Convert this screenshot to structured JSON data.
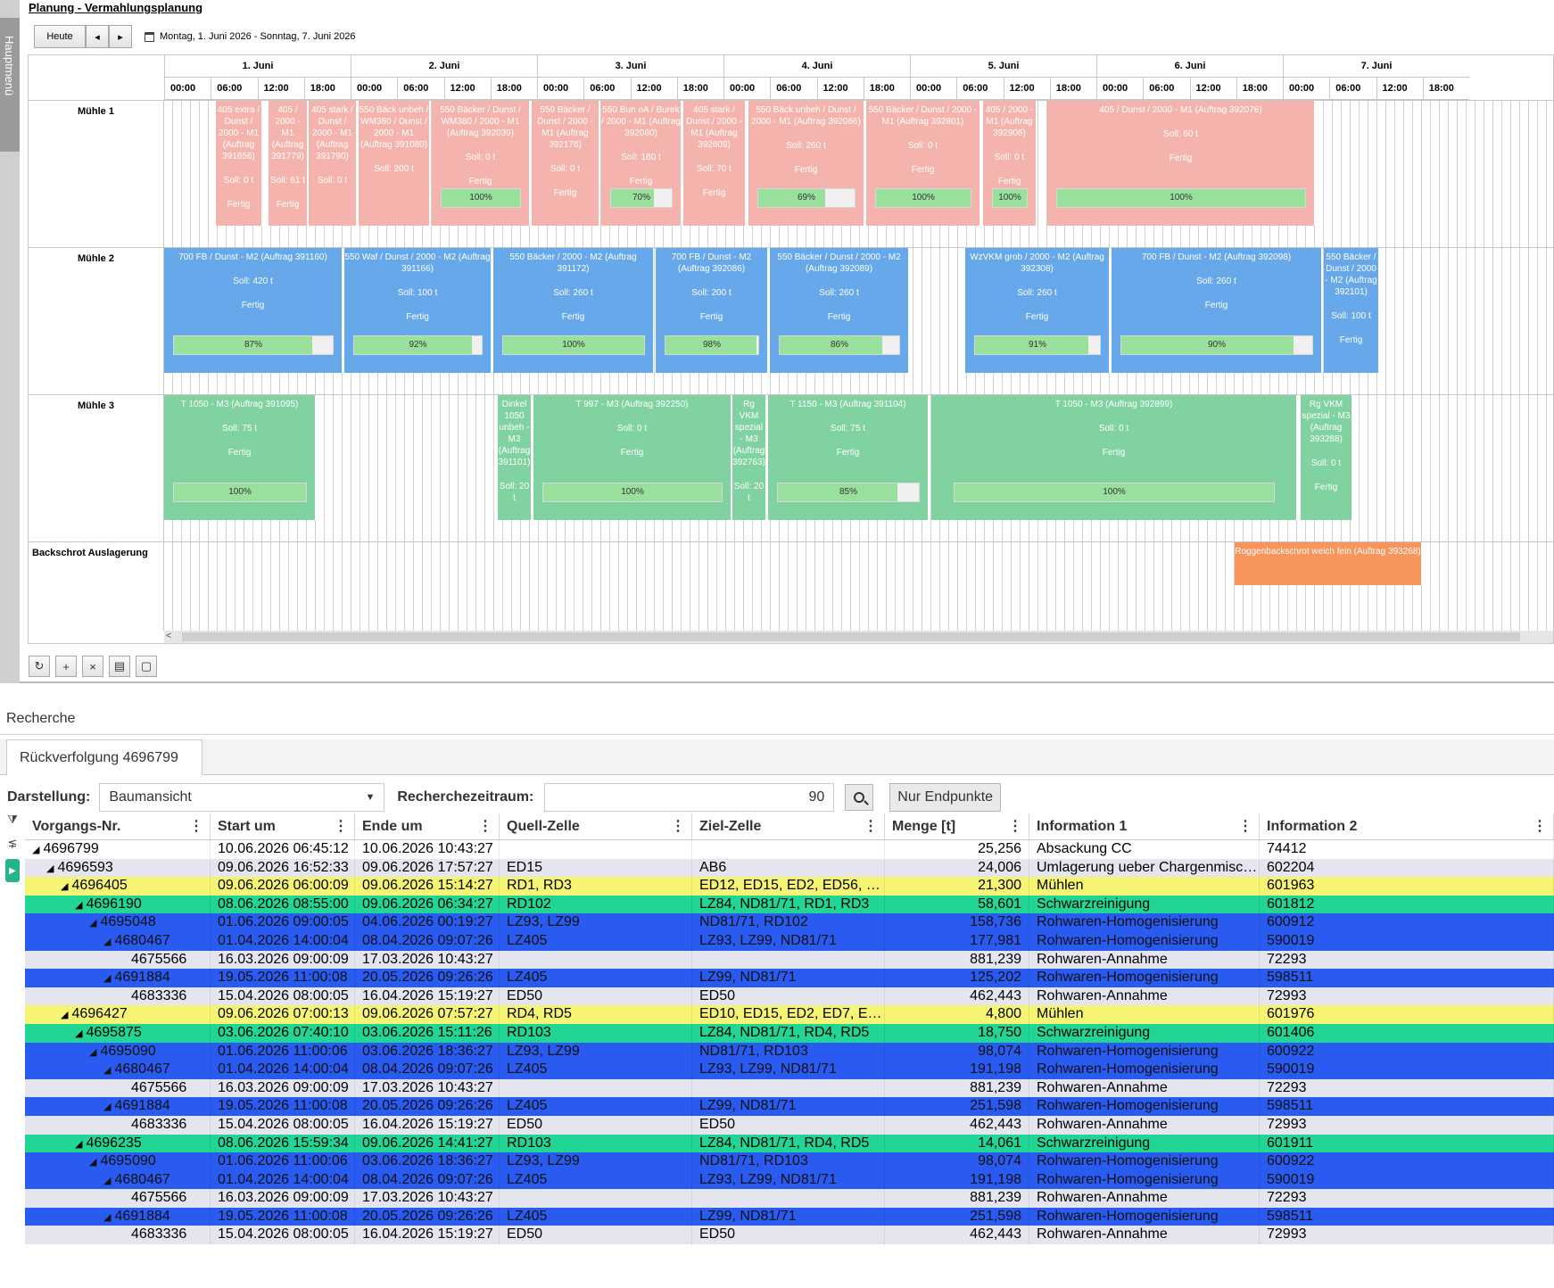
{
  "sidebar": {
    "label": "Hauptmenü"
  },
  "plan": {
    "title": "Planung - Vermahlungsplanung",
    "toolbar": {
      "today": "Heute",
      "prev": "◂",
      "next": "▸",
      "range": "Montag, 1. Juni 2026 - Sonntag, 7. Juni 2026"
    },
    "days": [
      "1. Juni",
      "2. Juni",
      "3. Juni",
      "4. Juni",
      "5. Juni",
      "6. Juni",
      "7. Juni"
    ],
    "hours": [
      "00:00",
      "06:00",
      "12:00",
      "18:00"
    ],
    "rows": [
      "Mühle 1",
      "Mühle 2",
      "Mühle 3",
      "Backschrot Auslagerung"
    ],
    "tasks_m1": [
      {
        "title": "405 extra / Dunst / 2000 - M1 (Auftrag 391656)",
        "soll": "Soll: 0 t",
        "state": "Fertig"
      },
      {
        "title": "405 / 2000 - M1 (Auftrag 391779)",
        "soll": "Soll: 61 t",
        "state": "Fertig"
      },
      {
        "title": "405 stark / Dunst / 2000 - M1 (Auftrag 391790)",
        "soll": "Soll: 0 t",
        "state": ""
      },
      {
        "title": "550 Bäck unbeh / WM380 / Dunst / 2000 - M1 (Auftrag 391080)",
        "soll": "Soll: 200 t",
        "state": ""
      },
      {
        "title": "550 Bäcker / Dunst / WM380 / 2000 - M1 (Auftrag 392039)",
        "soll": "Soll: 0 t",
        "state": "Fertig",
        "pct": "100%"
      },
      {
        "title": "550 Bäcker / Dunst / 2000 - M1 (Auftrag 392176)",
        "soll": "Soll: 0 t",
        "state": "Fertig"
      },
      {
        "title": "550 Bun oA / Burek / 2000 - M1 (Auftrag 392060)",
        "soll": "Soll: 160 t",
        "state": "Fertig",
        "pct": "70%"
      },
      {
        "title": "405 stark / Dunst / 2000 - M1 (Auftrag 392609)",
        "soll": "Soll: 70 t",
        "state": "Fertig"
      },
      {
        "title": "550 Bäck unbeh / Dunst / 2000 - M1 (Auftrag 392066)",
        "soll": "Soll: 260 t",
        "state": "Fertig",
        "pct": "69%"
      },
      {
        "title": "550 Bäcker / Dunst / 2000 - M1 (Auftrag 392801)",
        "soll": "Soll: 0 t",
        "state": "Fertig",
        "pct": "100%"
      },
      {
        "title": "405 / 2000 - M1 (Auftrag 392906)",
        "soll": "Soll: 0 t",
        "state": "Fertig",
        "pct": "100%"
      },
      {
        "title": "405 / Dunst / 2000 - M1 (Auftrag 392076)",
        "soll": "Soll: 60 t",
        "state": "Fertig",
        "pct": "100%"
      }
    ],
    "tasks_m2": [
      {
        "title": "700 FB / Dunst - M2 (Auftrag 391160)",
        "soll": "Soll: 420 t",
        "state": "Fertig",
        "pct": "87%"
      },
      {
        "title": "550 Waf / Dunst / 2000 - M2 (Auftrag 391166)",
        "soll": "Soll: 100 t",
        "state": "Fertig",
        "pct": "92%"
      },
      {
        "title": "550 Bäcker / 2000 - M2 (Auftrag 391172)",
        "soll": "Soll: 260 t",
        "state": "Fertig",
        "pct": "100%"
      },
      {
        "title": "700 FB / Dunst - M2 (Auftrag 392086)",
        "soll": "Soll: 200 t",
        "state": "Fertig",
        "pct": "98%"
      },
      {
        "title": "550 Bäcker / Dunst / 2000 - M2 (Auftrag 392089)",
        "soll": "Soll: 260 t",
        "state": "Fertig",
        "pct": "86%"
      },
      {
        "title": "WzVKM grob / 2000 - M2 (Auftrag 392308)",
        "soll": "Soll: 260 t",
        "state": "Fertig",
        "pct": "91%"
      },
      {
        "title": "700 FB / Dunst - M2 (Auftrag 392098)",
        "soll": "Soll: 260 t",
        "state": "Fertig",
        "pct": "90%"
      },
      {
        "title": "550 Bäcker / Dunst / 2000 - M2 (Auftrag 392101)",
        "soll": "Soll: 100 t",
        "state": "Fertig"
      }
    ],
    "tasks_m3": [
      {
        "title": "T 1050 - M3 (Auftrag 391095)",
        "soll": "Soll: 75 t",
        "state": "Fertig",
        "pct": "100%"
      },
      {
        "title": "Dinkel 1050 unbeh - M3 (Auftrag 391101)",
        "soll": "Soll: 20 t",
        "state": ""
      },
      {
        "title": "T 997 - M3 (Auftrag 392250)",
        "soll": "Soll: 0 t",
        "state": "Fertig",
        "pct": "100%"
      },
      {
        "title": "Rg VKM spezial - M3 (Auftrag 392763)",
        "soll": "Soll: 20 t",
        "state": ""
      },
      {
        "title": "T 1150 - M3 (Auftrag 391104)",
        "soll": "Soll: 75 t",
        "state": "Fertig",
        "pct": "85%"
      },
      {
        "title": "T 1050 - M3 (Auftrag 392899)",
        "soll": "Soll: 0 t",
        "state": "Fertig",
        "pct": "100%"
      },
      {
        "title": "Rg VKM spezial - M3 (Auftrag 393288)",
        "soll": "Soll: 0 t",
        "state": "Fertig"
      }
    ],
    "tasks_bs": [
      {
        "title": "Roggenbackschrot weich fein (Auftrag 393268)"
      }
    ],
    "progress_levels": {
      "m1": [
        1.0,
        0.7,
        0.69,
        1.0,
        1.0,
        1.0
      ],
      "m2": [
        0.87,
        0.92,
        1.0,
        0.98,
        0.86,
        0.91,
        0.9
      ],
      "m3": [
        1.0,
        1.0,
        0.85,
        1.0
      ]
    },
    "colors": {
      "m1": "#f4b4ad",
      "m2": "#66a8ea",
      "m3": "#80d3a0",
      "bs": "#f7955d"
    }
  },
  "research": {
    "title": "Recherche",
    "tab": "Rückverfolgung 4696799",
    "darstellung_label": "Darstellung:",
    "darstellung_value": "Baumansicht",
    "zeitraum_label": "Recherchezeitraum:",
    "zeitraum_value": "90",
    "endpunkte_btn": "Nur Endpunkte",
    "columns": [
      "Vorgangs-Nr.",
      "Start um",
      "Ende um",
      "Quell-Zelle",
      "Ziel-Zelle",
      "Menge [t]",
      "Information 1",
      "Information 2"
    ],
    "rows": [
      {
        "lvl": 0,
        "arrow": "◢",
        "id": "4696799",
        "start": "10.06.2026 06:45:12",
        "end": "10.06.2026 10:43:27",
        "src": "",
        "dst": "",
        "menge": "25,256",
        "i1": "Absackung CC",
        "i2": "74412",
        "color": "white"
      },
      {
        "lvl": 1,
        "arrow": "◢",
        "id": "4696593",
        "start": "09.06.2026 16:52:33",
        "end": "09.06.2026 17:57:27",
        "src": "ED15",
        "dst": "AB6",
        "menge": "24,006",
        "i1": "Umlagerung ueber Chargenmisc…",
        "i2": "602204",
        "color": "lg"
      },
      {
        "lvl": 2,
        "arrow": "◢",
        "id": "4696405",
        "start": "09.06.2026 06:00:09",
        "end": "09.06.2026 15:14:27",
        "src": "RD1, RD3",
        "dst": "ED12, ED15, ED2, ED56, …",
        "menge": "21,300",
        "i1": "Mühlen",
        "i2": "601963",
        "color": "yellow"
      },
      {
        "lvl": 3,
        "arrow": "◢",
        "id": "4696190",
        "start": "08.06.2026 08:55:00",
        "end": "09.06.2026 06:34:27",
        "src": "RD102",
        "dst": "LZ84, ND81/71, RD1, RD3",
        "menge": "58,601",
        "i1": "Schwarzreinigung",
        "i2": "601812",
        "color": "teal"
      },
      {
        "lvl": 4,
        "arrow": "◢",
        "id": "4695048",
        "start": "01.06.2026 09:00:05",
        "end": "04.06.2026 00:19:27",
        "src": "LZ93, LZ99",
        "dst": "ND81/71, RD102",
        "menge": "158,736",
        "i1": "Rohwaren-Homogenisierung",
        "i2": "600912",
        "color": "blue"
      },
      {
        "lvl": 5,
        "arrow": "◢",
        "id": "4680467",
        "start": "01.04.2026 14:00:04",
        "end": "08.04.2026 09:07:26",
        "src": "LZ405",
        "dst": "LZ93, LZ99, ND81/71",
        "menge": "177,981",
        "i1": "Rohwaren-Homogenisierung",
        "i2": "590019",
        "color": "blue"
      },
      {
        "lvl": 6,
        "arrow": "",
        "id": "4675566",
        "start": "16.03.2026 09:00:09",
        "end": "17.03.2026 10:43:27",
        "src": "",
        "dst": "",
        "menge": "881,239",
        "i1": "Rohwaren-Annahme",
        "i2": "72293",
        "color": "lg"
      },
      {
        "lvl": 5,
        "arrow": "◢",
        "id": "4691884",
        "start": "19.05.2026 11:00:08",
        "end": "20.05.2026 09:26:26",
        "src": "LZ405",
        "dst": "LZ99, ND81/71",
        "menge": "125,202",
        "i1": "Rohwaren-Homogenisierung",
        "i2": "598511",
        "color": "blue"
      },
      {
        "lvl": 6,
        "arrow": "",
        "id": "4683336",
        "start": "15.04.2026 08:00:05",
        "end": "16.04.2026 15:19:27",
        "src": "ED50",
        "dst": "ED50",
        "menge": "462,443",
        "i1": "Rohwaren-Annahme",
        "i2": "72993",
        "color": "lg"
      },
      {
        "lvl": 2,
        "arrow": "◢",
        "id": "4696427",
        "start": "09.06.2026 07:00:13",
        "end": "09.06.2026 07:57:27",
        "src": "RD4, RD5",
        "dst": "ED10, ED15, ED2, ED7, E…",
        "menge": "4,800",
        "i1": "Mühlen",
        "i2": "601976",
        "color": "yellow"
      },
      {
        "lvl": 3,
        "arrow": "◢",
        "id": "4695875",
        "start": "03.06.2026 07:40:10",
        "end": "03.06.2026 15:11:26",
        "src": "RD103",
        "dst": "LZ84, ND81/71, RD4, RD5",
        "menge": "18,750",
        "i1": "Schwarzreinigung",
        "i2": "601406",
        "color": "teal"
      },
      {
        "lvl": 4,
        "arrow": "◢",
        "id": "4695090",
        "start": "01.06.2026 11:00:06",
        "end": "03.06.2026 18:36:27",
        "src": "LZ93, LZ99",
        "dst": "ND81/71, RD103",
        "menge": "98,074",
        "i1": "Rohwaren-Homogenisierung",
        "i2": "600922",
        "color": "blue"
      },
      {
        "lvl": 5,
        "arrow": "◢",
        "id": "4680467",
        "start": "01.04.2026 14:00:04",
        "end": "08.04.2026 09:07:26",
        "src": "LZ405",
        "dst": "LZ93, LZ99, ND81/71",
        "menge": "191,198",
        "i1": "Rohwaren-Homogenisierung",
        "i2": "590019",
        "color": "blue"
      },
      {
        "lvl": 6,
        "arrow": "",
        "id": "4675566",
        "start": "16.03.2026 09:00:09",
        "end": "17.03.2026 10:43:27",
        "src": "",
        "dst": "",
        "menge": "881,239",
        "i1": "Rohwaren-Annahme",
        "i2": "72293",
        "color": "lg"
      },
      {
        "lvl": 5,
        "arrow": "◢",
        "id": "4691884",
        "start": "19.05.2026 11:00:08",
        "end": "20.05.2026 09:26:26",
        "src": "LZ405",
        "dst": "LZ99, ND81/71",
        "menge": "251,598",
        "i1": "Rohwaren-Homogenisierung",
        "i2": "598511",
        "color": "blue"
      },
      {
        "lvl": 6,
        "arrow": "",
        "id": "4683336",
        "start": "15.04.2026 08:00:05",
        "end": "16.04.2026 15:19:27",
        "src": "ED50",
        "dst": "ED50",
        "menge": "462,443",
        "i1": "Rohwaren-Annahme",
        "i2": "72993",
        "color": "lg"
      },
      {
        "lvl": 3,
        "arrow": "◢",
        "id": "4696235",
        "start": "08.06.2026 15:59:34",
        "end": "09.06.2026 14:41:27",
        "src": "RD103",
        "dst": "LZ84, ND81/71, RD4, RD5",
        "menge": "14,061",
        "i1": "Schwarzreinigung",
        "i2": "601911",
        "color": "teal"
      },
      {
        "lvl": 4,
        "arrow": "◢",
        "id": "4695090",
        "start": "01.06.2026 11:00:06",
        "end": "03.06.2026 18:36:27",
        "src": "LZ93, LZ99",
        "dst": "ND81/71, RD103",
        "menge": "98,074",
        "i1": "Rohwaren-Homogenisierung",
        "i2": "600922",
        "color": "blue"
      },
      {
        "lvl": 5,
        "arrow": "◢",
        "id": "4680467",
        "start": "01.04.2026 14:00:04",
        "end": "08.04.2026 09:07:26",
        "src": "LZ405",
        "dst": "LZ93, LZ99, ND81/71",
        "menge": "191,198",
        "i1": "Rohwaren-Homogenisierung",
        "i2": "590019",
        "color": "blue"
      },
      {
        "lvl": 6,
        "arrow": "",
        "id": "4675566",
        "start": "16.03.2026 09:00:09",
        "end": "17.03.2026 10:43:27",
        "src": "",
        "dst": "",
        "menge": "881,239",
        "i1": "Rohwaren-Annahme",
        "i2": "72293",
        "color": "lg"
      },
      {
        "lvl": 5,
        "arrow": "◢",
        "id": "4691884",
        "start": "19.05.2026 11:00:08",
        "end": "20.05.2026 09:26:26",
        "src": "LZ405",
        "dst": "LZ99, ND81/71",
        "menge": "251,598",
        "i1": "Rohwaren-Homogenisierung",
        "i2": "598511",
        "color": "blue"
      },
      {
        "lvl": 6,
        "arrow": "",
        "id": "4683336",
        "start": "15.04.2026 08:00:05",
        "end": "16.04.2026 15:19:27",
        "src": "ED50",
        "dst": "ED50",
        "menge": "462,443",
        "i1": "Rohwaren-Annahme",
        "i2": "72993",
        "color": "lg"
      }
    ]
  }
}
